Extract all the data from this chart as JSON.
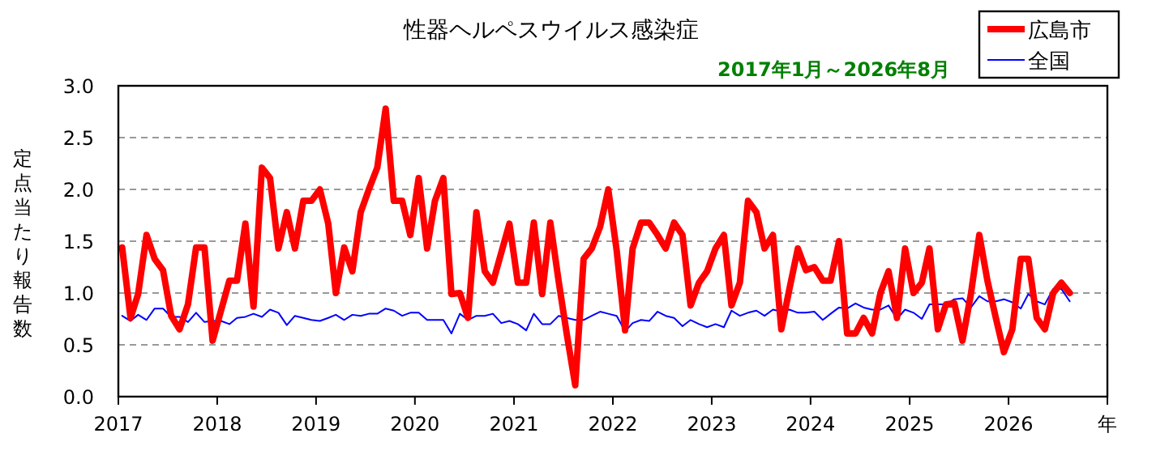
{
  "chart_data": {
    "type": "line",
    "title": "性器ヘルペスウイルス感染症",
    "subtitle": "2017年1月～2026年8月",
    "ylabel": "定点当たり報告数",
    "x": [
      "2017-01-15",
      "2017-02-15",
      "2017-03-15",
      "2017-04-15",
      "2017-05-15",
      "2017-06-15",
      "2017-07-15",
      "2017-08-15",
      "2017-09-15",
      "2017-10-15",
      "2017-11-15",
      "2017-12-15",
      "2018-01-15",
      "2018-02-15",
      "2018-03-15",
      "2018-04-15",
      "2018-05-15",
      "2018-06-15",
      "2018-07-15",
      "2018-08-15",
      "2018-09-15",
      "2018-10-15",
      "2018-11-15",
      "2018-12-15",
      "2019-01-15",
      "2019-02-15",
      "2019-03-15",
      "2019-04-15",
      "2019-05-15",
      "2019-06-15",
      "2019-07-15",
      "2019-08-15",
      "2019-09-15",
      "2019-10-15",
      "2019-11-15",
      "2019-12-15",
      "2020-01-15",
      "2020-02-15",
      "2020-03-15",
      "2020-04-15",
      "2020-05-15",
      "2020-06-15",
      "2020-07-15",
      "2020-08-15",
      "2020-09-15",
      "2020-10-15",
      "2020-11-15",
      "2020-12-15",
      "2021-01-15",
      "2021-02-15",
      "2021-03-15",
      "2021-04-15",
      "2021-05-15",
      "2021-06-15",
      "2021-07-15",
      "2021-08-15",
      "2021-09-15",
      "2021-10-15",
      "2021-11-15",
      "2021-12-15",
      "2022-01-15",
      "2022-02-15",
      "2022-03-15",
      "2022-04-15",
      "2022-05-15",
      "2022-06-15",
      "2022-07-15",
      "2022-08-15",
      "2022-09-15",
      "2022-10-15",
      "2022-11-15",
      "2022-12-15",
      "2023-01-15",
      "2023-02-15",
      "2023-03-15",
      "2023-04-15",
      "2023-05-15",
      "2023-06-15",
      "2023-07-15",
      "2023-08-15",
      "2023-09-15",
      "2023-10-15",
      "2023-11-15",
      "2023-12-15",
      "2024-01-15",
      "2024-02-15",
      "2024-03-15",
      "2024-04-15",
      "2024-05-15",
      "2024-06-15",
      "2024-07-15",
      "2024-08-15",
      "2024-09-15",
      "2024-10-15",
      "2024-11-15",
      "2024-12-15",
      "2025-01-15",
      "2025-02-15",
      "2025-03-15",
      "2025-04-15",
      "2025-05-15",
      "2025-06-15",
      "2025-07-15",
      "2025-08-15",
      "2025-09-15",
      "2025-10-15",
      "2025-11-15",
      "2025-12-15",
      "2026-01-15",
      "2026-02-15",
      "2026-03-15",
      "2026-04-15",
      "2026-05-15",
      "2026-06-15",
      "2026-07-15",
      "2026-08-15"
    ],
    "series": [
      {
        "name": "広島市",
        "color": "#ff0000",
        "values": [
          1.44,
          0.76,
          0.99,
          1.56,
          1.33,
          1.22,
          0.78,
          0.65,
          0.89,
          1.44,
          1.44,
          0.54,
          0.83,
          1.12,
          1.12,
          1.67,
          0.87,
          2.21,
          2.11,
          1.43,
          1.78,
          1.43,
          1.89,
          1.89,
          2.0,
          1.67,
          1.0,
          1.44,
          1.21,
          1.78,
          2.0,
          2.21,
          2.78,
          1.89,
          1.89,
          1.56,
          2.11,
          1.43,
          1.89,
          2.11,
          0.99,
          1.0,
          0.76,
          1.78,
          1.21,
          1.1,
          1.39,
          1.67,
          1.1,
          1.1,
          1.68,
          0.99,
          1.68,
          1.11,
          0.6,
          0.11,
          1.33,
          1.43,
          1.64,
          2.0,
          1.41,
          0.64,
          1.43,
          1.68,
          1.68,
          1.56,
          1.43,
          1.68,
          1.56,
          0.88,
          1.1,
          1.21,
          1.43,
          1.56,
          0.88,
          1.1,
          1.89,
          1.78,
          1.43,
          1.56,
          0.65,
          1.04,
          1.43,
          1.22,
          1.25,
          1.12,
          1.12,
          1.5,
          0.61,
          0.61,
          0.76,
          0.61,
          1.0,
          1.21,
          0.76,
          1.43,
          1.0,
          1.1,
          1.43,
          0.65,
          0.89,
          0.9,
          0.54,
          0.99,
          1.56,
          1.12,
          0.76,
          0.43,
          0.65,
          1.33,
          1.33,
          0.76,
          0.65,
          1.0,
          1.1,
          1.0
        ]
      },
      {
        "name": "全国",
        "color": "#0000ff",
        "values": [
          0.78,
          0.73,
          0.79,
          0.74,
          0.85,
          0.85,
          0.77,
          0.77,
          0.72,
          0.81,
          0.72,
          0.73,
          0.73,
          0.7,
          0.76,
          0.77,
          0.8,
          0.77,
          0.84,
          0.81,
          0.69,
          0.78,
          0.76,
          0.74,
          0.73,
          0.76,
          0.79,
          0.74,
          0.79,
          0.78,
          0.8,
          0.8,
          0.85,
          0.83,
          0.78,
          0.81,
          0.81,
          0.74,
          0.74,
          0.74,
          0.61,
          0.8,
          0.74,
          0.78,
          0.78,
          0.8,
          0.71,
          0.73,
          0.7,
          0.64,
          0.8,
          0.7,
          0.7,
          0.78,
          0.76,
          0.74,
          0.74,
          0.78,
          0.82,
          0.8,
          0.78,
          0.63,
          0.71,
          0.74,
          0.73,
          0.82,
          0.78,
          0.76,
          0.68,
          0.74,
          0.7,
          0.67,
          0.7,
          0.67,
          0.83,
          0.78,
          0.81,
          0.83,
          0.78,
          0.84,
          0.82,
          0.84,
          0.81,
          0.81,
          0.82,
          0.74,
          0.8,
          0.86,
          0.85,
          0.9,
          0.86,
          0.84,
          0.84,
          0.88,
          0.75,
          0.84,
          0.81,
          0.75,
          0.89,
          0.89,
          0.89,
          0.94,
          0.95,
          0.86,
          0.97,
          0.92,
          0.92,
          0.94,
          0.91,
          0.85,
          0.99,
          0.92,
          0.89,
          1.04,
          1.04,
          0.92
        ]
      }
    ],
    "xlim": [
      "2017-01",
      "2027-01"
    ],
    "xticks": [
      {
        "value": "2017-01",
        "label": "2017"
      },
      {
        "value": "2018-01",
        "label": "2018"
      },
      {
        "value": "2019-01",
        "label": "2019"
      },
      {
        "value": "2020-01",
        "label": "2020"
      },
      {
        "value": "2021-01",
        "label": "2021"
      },
      {
        "value": "2022-01",
        "label": "2022"
      },
      {
        "value": "2023-01",
        "label": "2023"
      },
      {
        "value": "2024-01",
        "label": "2024"
      },
      {
        "value": "2025-01",
        "label": "2025"
      },
      {
        "value": "2026-01",
        "label": "2026"
      },
      {
        "value": "2027-01",
        "label": "年"
      }
    ],
    "ylim": [
      0,
      3
    ],
    "yticks": [
      {
        "value": 0,
        "label": "0.0"
      },
      {
        "value": 0.5,
        "label": "0.5"
      },
      {
        "value": 1,
        "label": "1.0"
      },
      {
        "value": 1.5,
        "label": "1.5"
      },
      {
        "value": 2,
        "label": "2.0"
      },
      {
        "value": 2.5,
        "label": "2.5"
      },
      {
        "value": 3,
        "label": "3.0"
      }
    ],
    "grid": "y",
    "legend": "top right",
    "marker": "none",
    "line_style": "solid"
  }
}
